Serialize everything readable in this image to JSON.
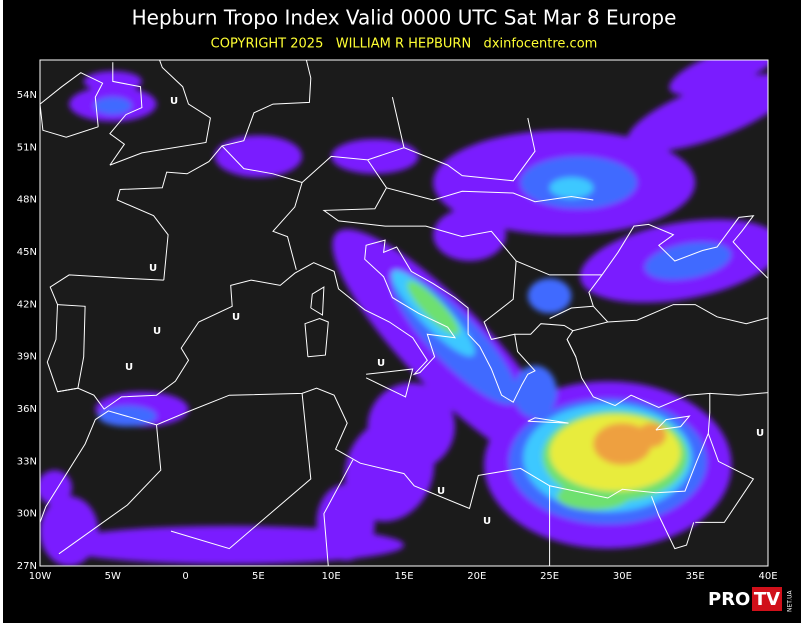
{
  "header": {
    "title": "Hepburn Tropo Index Valid 0000 UTC Sat Mar 8 Europe",
    "subtitle": "COPYRIGHT 2025   WILLIAM R HEPBURN   dxinfocentre.com"
  },
  "map": {
    "lat_labels": [
      "54N",
      "51N",
      "48N",
      "45N",
      "42N",
      "39N",
      "36N",
      "33N",
      "30N",
      "27N"
    ],
    "lon_labels": [
      "10W",
      "5W",
      "0",
      "5E",
      "10E",
      "15E",
      "20E",
      "25E",
      "30E",
      "35E",
      "40E"
    ],
    "markers": [
      "U",
      "U",
      "U",
      "U",
      "U",
      "U",
      "U",
      "U",
      "U"
    ]
  },
  "logo": {
    "pro": "PRO",
    "tv": "TV",
    "site": "NET.UA"
  }
}
